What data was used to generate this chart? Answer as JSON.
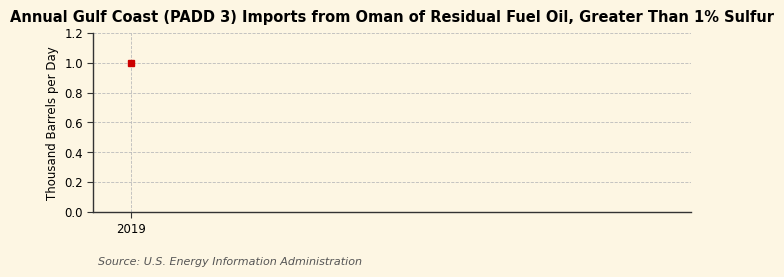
{
  "title": "Annual Gulf Coast (PADD 3) Imports from Oman of Residual Fuel Oil, Greater Than 1% Sulfur",
  "ylabel": "Thousand Barrels per Day",
  "source": "Source: U.S. Energy Information Administration",
  "x_data": [
    2019
  ],
  "y_data": [
    1.0
  ],
  "marker_color": "#cc0000",
  "marker_style": "s",
  "marker_size": 4,
  "xlim": [
    2018.8,
    2022.0
  ],
  "ylim": [
    0.0,
    1.2
  ],
  "yticks": [
    0.0,
    0.2,
    0.4,
    0.6,
    0.8,
    1.0,
    1.2
  ],
  "xticks": [
    2019
  ],
  "background_color": "#fdf6e3",
  "grid_color": "#bbbbbb",
  "title_fontsize": 10.5,
  "label_fontsize": 8.5,
  "tick_fontsize": 8.5,
  "source_fontsize": 8
}
